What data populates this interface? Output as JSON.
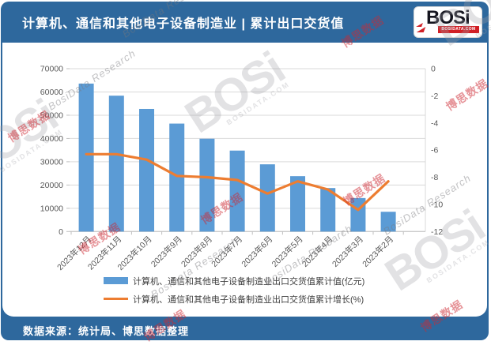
{
  "header": {
    "title": "计算机、通信和其他电子设备制造业 | 累计出口交货值",
    "logo_text": "BOSi",
    "logo_domain": "BOSIDATA.COM"
  },
  "footer": {
    "source": "数据来源：统计局、博思数据整理"
  },
  "watermarks": {
    "logo_text": "BOSi",
    "logo_sub": "BOSIDATA.COM",
    "cn_text": "博思数据",
    "research_text": "BosiData Research"
  },
  "colors": {
    "bar": "#5B9BD5",
    "line": "#ED7D31",
    "band": "#2e689d",
    "grid": "#d9d9d9",
    "axis_text": "#595959"
  },
  "chart_data": {
    "type": "bar",
    "subtype": "combo bar+line, dual axis",
    "categories": [
      "2023年12月",
      "2023年11月",
      "2023年10月",
      "2023年9月",
      "2023年8月",
      "2023年7月",
      "2023年6月",
      "2023年5月",
      "2023年4月",
      "2023年3月",
      "2023年2月"
    ],
    "series": [
      {
        "name": "计算机、通信和其他电子设备制造业出口交货值累计值(亿元)",
        "type": "bar",
        "axis": "left",
        "values": [
          63600,
          58400,
          52700,
          46400,
          39900,
          34800,
          28900,
          23800,
          18700,
          14400,
          8500
        ]
      },
      {
        "name": "计算机、通信和其他电子设备制造业出口交货值累计增长(%)",
        "type": "line",
        "axis": "right",
        "values": [
          -6.3,
          -6.3,
          -6.7,
          -7.9,
          -8.0,
          -8.2,
          -9.2,
          -8.3,
          -8.9,
          -10.4,
          -8.3
        ]
      }
    ],
    "left_axis": {
      "min": 0,
      "max": 70000,
      "step": 10000
    },
    "right_axis": {
      "min": -12,
      "max": 0,
      "step": 2
    },
    "grid": true,
    "legend_position": "bottom"
  }
}
